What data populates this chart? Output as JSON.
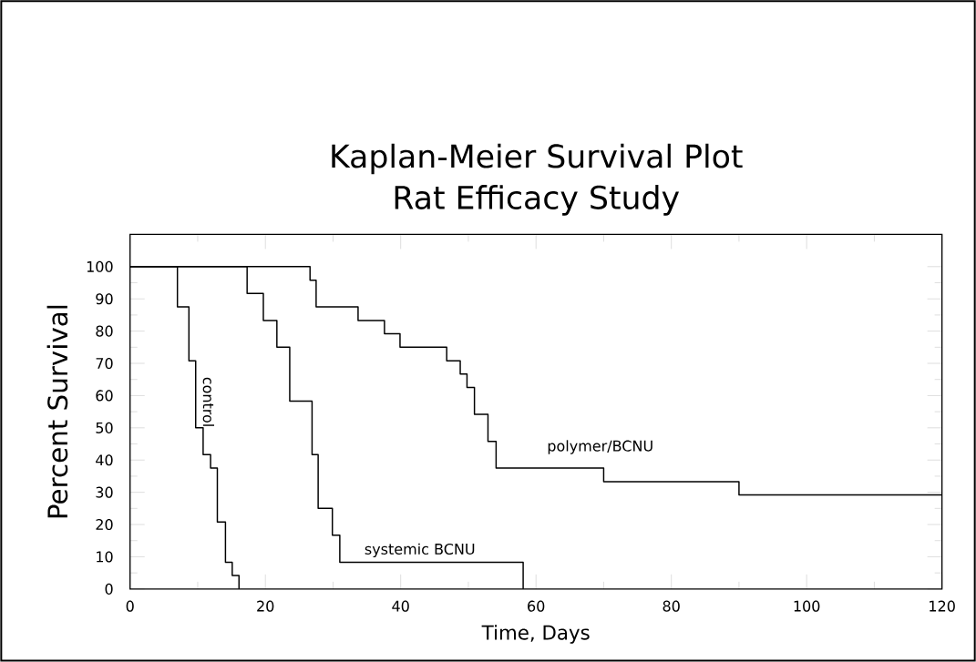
{
  "chart_data": {
    "type": "step",
    "title": "Kaplan-Meier Survival Plot",
    "subtitle": "Rat Efficacy Study",
    "xlabel": "Time, Days",
    "ylabel": "Percent Survival",
    "xlim": [
      0,
      120
    ],
    "ylim": [
      0,
      110
    ],
    "xticks": [
      0,
      20,
      40,
      60,
      80,
      100,
      120
    ],
    "yticks": [
      0,
      10,
      20,
      30,
      40,
      50,
      60,
      70,
      80,
      90,
      100
    ],
    "series": [
      {
        "name": "control",
        "color": "#000000",
        "x": [
          0,
          7,
          8.7,
          9.7,
          10.8,
          11.9,
          12.9,
          14.1,
          15.1,
          16.1
        ],
        "values": [
          100,
          87.5,
          70.8,
          50,
          41.7,
          37.5,
          20.8,
          8.3,
          4.2,
          0
        ]
      },
      {
        "name": "systemic BCNU",
        "color": "#000000",
        "x": [
          0,
          17.3,
          19.7,
          21.7,
          23.6,
          26.9,
          27.8,
          29.9,
          31.0,
          58.1
        ],
        "values": [
          100,
          91.7,
          83.3,
          75,
          58.3,
          41.7,
          25,
          16.7,
          8.3,
          0
        ]
      },
      {
        "name": "polymer/BCNU",
        "color": "#000000",
        "x": [
          0,
          26.6,
          27.5,
          33.7,
          37.6,
          39.9,
          46.8,
          48.8,
          49.8,
          50.9,
          52.9,
          54.1,
          70,
          90,
          120
        ],
        "values": [
          100,
          95.8,
          87.5,
          83.3,
          79.2,
          75,
          70.8,
          66.7,
          62.5,
          54.2,
          45.8,
          37.5,
          33.3,
          29.2,
          29.2
        ]
      }
    ]
  }
}
